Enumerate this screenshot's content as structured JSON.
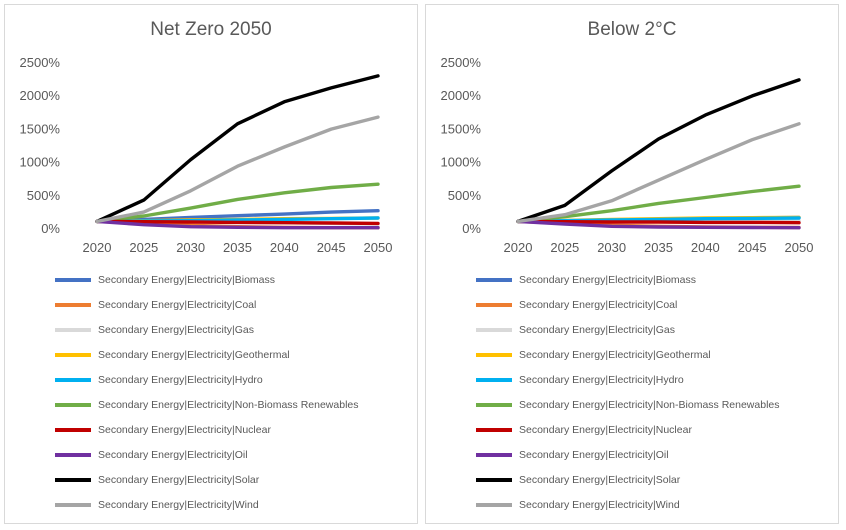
{
  "chart_data": [
    {
      "type": "line",
      "title": "Net Zero 2050",
      "x": [
        2020,
        2025,
        2030,
        2035,
        2040,
        2045,
        2050
      ],
      "x_tick_labels": [
        "2020",
        "2025",
        "2030",
        "2035",
        "2040",
        "2045",
        "2050"
      ],
      "y_tick_labels": [
        "0%",
        "500%",
        "1000%",
        "1500%",
        "2000%",
        "2500%"
      ],
      "ylim": [
        0,
        2500
      ],
      "y_ticks": [
        0,
        500,
        1000,
        1500,
        2000,
        2500
      ],
      "y_unit": "%",
      "grid": false,
      "legend_position": "bottom",
      "series": [
        {
          "name": "Secondary Energy|Electricity|Biomass",
          "color": "#4472C4",
          "values": [
            100,
            130,
            160,
            185,
            210,
            240,
            260
          ]
        },
        {
          "name": "Secondary Energy|Electricity|Coal",
          "color": "#ED7D31",
          "values": [
            100,
            70,
            40,
            20,
            10,
            5,
            5
          ]
        },
        {
          "name": "Secondary Energy|Electricity|Gas",
          "color": "#D9D9D9",
          "values": [
            100,
            100,
            95,
            90,
            80,
            70,
            60
          ]
        },
        {
          "name": "Secondary Energy|Electricity|Geothermal",
          "color": "#FFC000",
          "values": [
            100,
            110,
            120,
            130,
            140,
            145,
            150
          ]
        },
        {
          "name": "Secondary Energy|Electricity|Hydro",
          "color": "#00B0F0",
          "values": [
            100,
            105,
            110,
            120,
            130,
            140,
            150
          ]
        },
        {
          "name": "Secondary Energy|Electricity|Non-Biomass Renewables",
          "color": "#70AD47",
          "values": [
            100,
            180,
            300,
            430,
            530,
            610,
            660
          ]
        },
        {
          "name": "Secondary Energy|Electricity|Nuclear",
          "color": "#C00000",
          "values": [
            100,
            95,
            90,
            85,
            80,
            75,
            70
          ]
        },
        {
          "name": "Secondary Energy|Electricity|Oil",
          "color": "#7030A0",
          "values": [
            100,
            50,
            20,
            10,
            5,
            5,
            5
          ]
        },
        {
          "name": "Secondary Energy|Electricity|Solar",
          "color": "#000000",
          "values": [
            100,
            420,
            1030,
            1570,
            1900,
            2110,
            2290
          ]
        },
        {
          "name": "Secondary Energy|Electricity|Wind",
          "color": "#A5A5A5",
          "values": [
            100,
            240,
            560,
            930,
            1220,
            1490,
            1670
          ]
        }
      ]
    },
    {
      "type": "line",
      "title": "Below 2°C",
      "x": [
        2020,
        2025,
        2030,
        2035,
        2040,
        2045,
        2050
      ],
      "x_tick_labels": [
        "2020",
        "2025",
        "2030",
        "2035",
        "2040",
        "2045",
        "2050"
      ],
      "y_tick_labels": [
        "0%",
        "500%",
        "1000%",
        "1500%",
        "2000%",
        "2500%"
      ],
      "ylim": [
        0,
        2500
      ],
      "y_ticks": [
        0,
        500,
        1000,
        1500,
        2000,
        2500
      ],
      "y_unit": "%",
      "grid": false,
      "legend_position": "bottom",
      "series": [
        {
          "name": "Secondary Energy|Electricity|Biomass",
          "color": "#4472C4",
          "values": [
            100,
            110,
            120,
            130,
            140,
            150,
            160
          ]
        },
        {
          "name": "Secondary Energy|Electricity|Coal",
          "color": "#ED7D31",
          "values": [
            100,
            70,
            40,
            25,
            15,
            10,
            8
          ]
        },
        {
          "name": "Secondary Energy|Electricity|Gas",
          "color": "#D9D9D9",
          "values": [
            100,
            110,
            115,
            120,
            120,
            115,
            110
          ]
        },
        {
          "name": "Secondary Energy|Electricity|Geothermal",
          "color": "#FFC000",
          "values": [
            100,
            115,
            130,
            140,
            150,
            155,
            160
          ]
        },
        {
          "name": "Secondary Energy|Electricity|Hydro",
          "color": "#00B0F0",
          "values": [
            100,
            110,
            120,
            130,
            140,
            145,
            150
          ]
        },
        {
          "name": "Secondary Energy|Electricity|Non-Biomass Renewables",
          "color": "#70AD47",
          "values": [
            100,
            170,
            260,
            370,
            460,
            550,
            630
          ]
        },
        {
          "name": "Secondary Energy|Electricity|Nuclear",
          "color": "#C00000",
          "values": [
            100,
            95,
            90,
            90,
            85,
            85,
            80
          ]
        },
        {
          "name": "Secondary Energy|Electricity|Oil",
          "color": "#7030A0",
          "values": [
            100,
            60,
            25,
            15,
            10,
            8,
            5
          ]
        },
        {
          "name": "Secondary Energy|Electricity|Solar",
          "color": "#000000",
          "values": [
            100,
            340,
            860,
            1340,
            1700,
            1990,
            2230
          ]
        },
        {
          "name": "Secondary Energy|Electricity|Wind",
          "color": "#A5A5A5",
          "values": [
            100,
            200,
            410,
            720,
            1030,
            1330,
            1570
          ]
        }
      ]
    }
  ]
}
